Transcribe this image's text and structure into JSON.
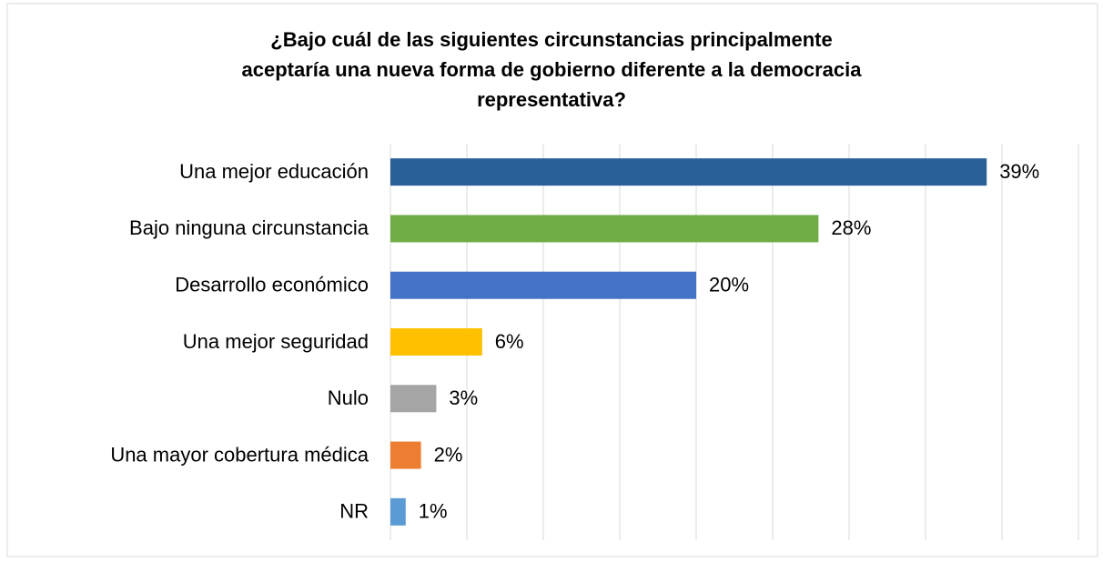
{
  "chart_data": {
    "type": "barh",
    "title": [
      "¿Bajo cuál de las siguientes circunstancias principalmente",
      "aceptaría una nueva forma de gobierno diferente a la democracia",
      "representativa?"
    ],
    "categories": [
      "Una mejor educación",
      "Bajo ninguna circunstancia",
      "Desarrollo económico",
      "Una mejor seguridad",
      "Nulo",
      "Una mayor cobertura médica",
      "NR"
    ],
    "values": [
      39,
      28,
      20,
      6,
      3,
      2,
      1
    ],
    "value_labels": [
      "39%",
      "28%",
      "20%",
      "6%",
      "3%",
      "2%",
      "1%"
    ],
    "colors": [
      "#2a5f97",
      "#70ad47",
      "#4472c4",
      "#ffc000",
      "#a5a5a5",
      "#ed7d31",
      "#5b9bd5"
    ],
    "xlim": [
      0,
      45
    ],
    "xticks": [
      0,
      5,
      10,
      15,
      20,
      25,
      30,
      35,
      40,
      45
    ],
    "grid": true
  }
}
